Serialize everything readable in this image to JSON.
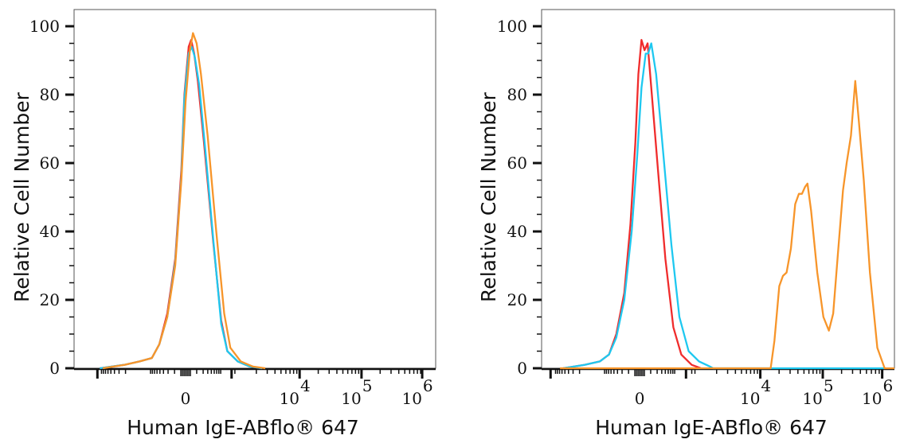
{
  "chart_data": [
    {
      "type": "line",
      "title": "",
      "xlabel": "Human IgE-ABflo® 647",
      "ylabel": "Relative Cell Number",
      "x_scale": "biexponential (display units; 1 unit = 1 decade)",
      "xlim": [
        -1.82,
        4.08
      ],
      "ylim": [
        0,
        100
      ],
      "yticks": [
        0,
        20,
        40,
        60,
        80,
        100
      ],
      "xticks": [
        {
          "at": 0,
          "base": "0",
          "exp": ""
        },
        {
          "at": 1.86,
          "base": "10",
          "exp": "4"
        },
        {
          "at": 2.87,
          "base": "10",
          "exp": "5"
        },
        {
          "at": 3.86,
          "base": "10",
          "exp": "6"
        }
      ],
      "grid": false,
      "series": [
        {
          "name": "red",
          "color": "#f02c2c",
          "x": [
            -1.4,
            -1.0,
            -0.75,
            -0.55,
            -0.43,
            -0.3,
            -0.17,
            -0.07,
            -0.02,
            0.05,
            0.09,
            0.14,
            0.2,
            0.3,
            0.45,
            0.58,
            0.68,
            0.85,
            1.05,
            1.25
          ],
          "y": [
            0,
            1,
            2,
            3,
            7,
            16,
            32,
            58,
            80,
            94,
            96,
            92,
            84,
            66,
            37,
            14,
            5,
            2,
            0.5,
            0
          ]
        },
        {
          "name": "cyan",
          "color": "#1ec8f0",
          "x": [
            -1.4,
            -1.0,
            -0.75,
            -0.55,
            -0.43,
            -0.3,
            -0.17,
            -0.07,
            -0.02,
            0.05,
            0.1,
            0.15,
            0.22,
            0.32,
            0.46,
            0.58,
            0.68,
            0.85,
            1.05,
            1.25
          ],
          "y": [
            0,
            1,
            2,
            3,
            7,
            15,
            31,
            56,
            79,
            92,
            94,
            91,
            83,
            64,
            36,
            13,
            5,
            2,
            0.5,
            0
          ]
        },
        {
          "name": "orange",
          "color": "#f7952a",
          "x": [
            -1.35,
            -1.0,
            -0.75,
            -0.55,
            -0.43,
            -0.3,
            -0.17,
            -0.07,
            0.0,
            0.07,
            0.12,
            0.18,
            0.25,
            0.36,
            0.5,
            0.63,
            0.73,
            0.9,
            1.1,
            1.3
          ],
          "y": [
            0,
            1,
            2,
            3,
            7,
            15,
            30,
            55,
            78,
            93,
            98,
            95,
            86,
            68,
            40,
            16,
            6,
            2,
            0.5,
            0
          ]
        }
      ]
    },
    {
      "type": "line",
      "title": "",
      "xlabel": "Human IgE-ABflo® 647",
      "ylabel": "Relative Cell Number",
      "x_scale": "biexponential (display units; 1 unit = 1 decade)",
      "xlim": [
        -1.6,
        4.16
      ],
      "ylim": [
        0,
        100
      ],
      "yticks": [
        0,
        20,
        40,
        60,
        80,
        100
      ],
      "xticks": [
        {
          "at": 0,
          "base": "0",
          "exp": ""
        },
        {
          "at": 1.97,
          "base": "10",
          "exp": "4"
        },
        {
          "at": 2.99,
          "base": "10",
          "exp": "5"
        },
        {
          "at": 3.96,
          "base": "10",
          "exp": "6"
        }
      ],
      "grid": false,
      "series": [
        {
          "name": "red",
          "color": "#f02c2c",
          "x": [
            -1.25,
            -0.9,
            -0.65,
            -0.5,
            -0.38,
            -0.25,
            -0.15,
            -0.07,
            -0.02,
            0.03,
            0.08,
            0.13,
            0.2,
            0.3,
            0.42,
            0.55,
            0.68,
            0.85,
            1.0
          ],
          "y": [
            0,
            1,
            2,
            4,
            10,
            22,
            42,
            66,
            86,
            96,
            93,
            95,
            80,
            58,
            32,
            12,
            4,
            1,
            0
          ]
        },
        {
          "name": "cyan",
          "color": "#1ec8f0",
          "x": [
            -1.25,
            -0.9,
            -0.65,
            -0.5,
            -0.38,
            -0.25,
            -0.13,
            -0.04,
            0.03,
            0.1,
            0.14,
            0.19,
            0.27,
            0.38,
            0.52,
            0.65,
            0.8,
            0.97,
            1.15,
            1.2,
            4.0
          ],
          "y": [
            0,
            1,
            2,
            4,
            9,
            20,
            40,
            62,
            82,
            92,
            92,
            95,
            86,
            64,
            36,
            15,
            5,
            2,
            0.5,
            0,
            0
          ]
        },
        {
          "name": "orange",
          "color": "#f7952a",
          "x": [
            -1.3,
            2.14,
            2.2,
            2.28,
            2.34,
            2.4,
            2.47,
            2.54,
            2.6,
            2.65,
            2.7,
            2.74,
            2.8,
            2.9,
            3.0,
            3.09,
            3.16,
            3.24,
            3.32,
            3.38,
            3.45,
            3.52,
            3.58,
            3.66,
            3.76,
            3.88,
            4.0,
            4.16
          ],
          "y": [
            0,
            0,
            8,
            24,
            27,
            28,
            35,
            48,
            51,
            51,
            53,
            54,
            46,
            28,
            15,
            11,
            16,
            34,
            52,
            60,
            68,
            84,
            72,
            55,
            28,
            6,
            0,
            0
          ]
        }
      ]
    }
  ]
}
